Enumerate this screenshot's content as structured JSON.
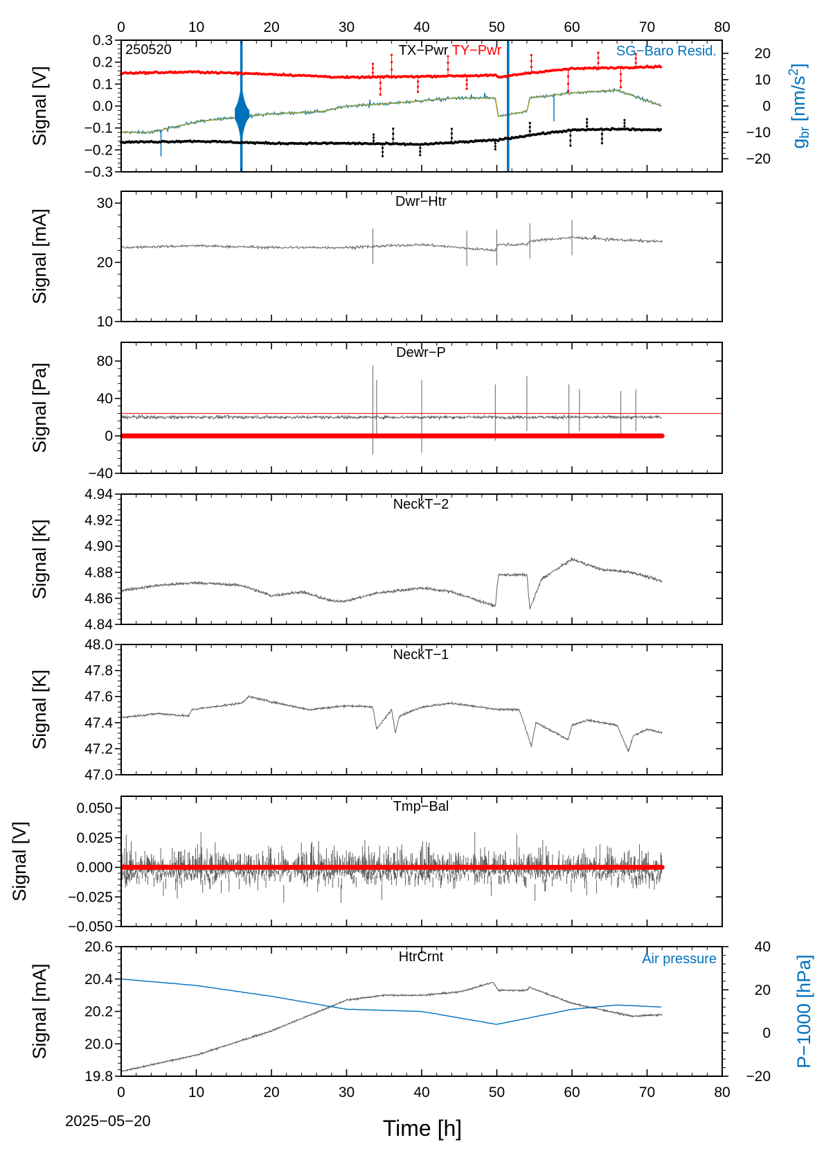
{
  "figure": {
    "date_label": "2025−05−20",
    "xlabel": "Time [h]",
    "xlim": [
      0,
      80
    ],
    "x_ticks": [
      0,
      10,
      20,
      30,
      40,
      50,
      60,
      70,
      80
    ],
    "data_end_h": 72
  },
  "colors": {
    "black": "#000000",
    "red": "#ff0000",
    "blue": "#0072bd",
    "gray": "#606060",
    "olive": "#9aa033"
  },
  "chart_data": [
    {
      "id": "p1",
      "type": "scatter",
      "title": "TX−Pwr",
      "title2": "TY−Pwr",
      "tag": "250520",
      "right_title": "SG−Baro Resid.",
      "ylabel": "Signal [V]",
      "ylim": [
        -0.3,
        0.3
      ],
      "yticks": [
        -0.3,
        -0.2,
        -0.1,
        0.0,
        0.1,
        0.2,
        0.3
      ],
      "ytick_labels": [
        "−0.3",
        "−0.2",
        "−0.1",
        "0.0",
        "0.1",
        "0.2",
        "0.3"
      ],
      "y2label": "g",
      "y2label_sub": "br",
      "y2label_unit": " [nm/s",
      "y2label_sup": "2",
      "y2label_end": "]",
      "y2lim": [
        -25,
        25
      ],
      "y2ticks": [
        -20,
        -10,
        0,
        10,
        20
      ],
      "y2tick_labels": [
        "−20",
        "−10",
        "0",
        "10",
        "20"
      ],
      "series": [
        {
          "name": "TY−Pwr",
          "color": "red",
          "x": [
            0,
            10,
            20,
            30,
            40,
            49.8,
            50.2,
            54,
            60,
            66,
            72
          ],
          "y": [
            0.15,
            0.155,
            0.145,
            0.13,
            0.135,
            0.14,
            0.13,
            0.15,
            0.17,
            0.175,
            0.18
          ]
        },
        {
          "name": "TX−Pwr",
          "color": "black",
          "x": [
            0,
            10,
            20,
            30,
            40,
            50,
            55,
            60,
            66,
            72
          ],
          "y": [
            -0.165,
            -0.16,
            -0.17,
            -0.17,
            -0.175,
            -0.155,
            -0.13,
            -0.11,
            -0.105,
            -0.11
          ]
        },
        {
          "name": "SG−Baro Resid.",
          "color": "blue",
          "axis": "right",
          "x": [
            0,
            4,
            10,
            16,
            20,
            27,
            30,
            36,
            44,
            49.8,
            50.2,
            54,
            54.4,
            60,
            66,
            72
          ],
          "y": [
            -10,
            -10,
            -6,
            -4,
            -3,
            -2,
            0,
            1,
            3,
            3,
            -4,
            -2,
            3,
            5,
            6,
            0
          ]
        }
      ]
    },
    {
      "id": "p2",
      "type": "line",
      "title": "Dwr−Htr",
      "ylabel": "Signal [mA]",
      "ylim": [
        10,
        32
      ],
      "yticks": [
        10,
        20,
        30
      ],
      "ytick_labels": [
        "10",
        "20",
        "30"
      ],
      "series": [
        {
          "color": "gray",
          "x": [
            0,
            10,
            20,
            30,
            40,
            49.8,
            50.2,
            54,
            54.4,
            60,
            66,
            72
          ],
          "y": [
            22.5,
            22.8,
            22.5,
            22.5,
            23,
            22,
            23,
            23,
            23.6,
            24.2,
            23.8,
            23.5
          ]
        }
      ]
    },
    {
      "id": "p3",
      "type": "line",
      "title": "Dewr−P",
      "ylabel": "Signal [Pa]",
      "ylim": [
        -40,
        100
      ],
      "yticks": [
        -40,
        0,
        40,
        80
      ],
      "ytick_labels": [
        "−40",
        "0",
        "40",
        "80"
      ],
      "series": [
        {
          "color": "gray",
          "x": [
            0,
            72
          ],
          "y": [
            20,
            20
          ]
        },
        {
          "color": "red",
          "x": [
            0,
            72
          ],
          "y": [
            0,
            0
          ]
        }
      ],
      "hline": 24
    },
    {
      "id": "p4",
      "type": "line",
      "title": "NeckT−2",
      "ylabel": "Signal [K]",
      "ylim": [
        4.84,
        4.94
      ],
      "yticks": [
        4.84,
        4.86,
        4.88,
        4.9,
        4.92,
        4.94
      ],
      "ytick_labels": [
        "4.84",
        "4.86",
        "4.88",
        "4.90",
        "4.92",
        "4.94"
      ],
      "series": [
        {
          "color": "gray",
          "x": [
            0,
            5,
            10,
            16,
            20,
            24,
            28,
            30,
            34,
            40,
            44,
            49.8,
            50.2,
            54,
            54.4,
            56,
            60,
            64,
            68,
            72
          ],
          "y": [
            4.866,
            4.87,
            4.872,
            4.87,
            4.862,
            4.865,
            4.858,
            4.858,
            4.864,
            4.868,
            4.865,
            4.854,
            4.878,
            4.878,
            4.852,
            4.875,
            4.89,
            4.882,
            4.88,
            4.873
          ]
        }
      ]
    },
    {
      "id": "p5",
      "type": "line",
      "title": "NeckT−1",
      "ylabel": "Signal [K]",
      "ylim": [
        47.0,
        48.0
      ],
      "yticks": [
        47.0,
        47.2,
        47.4,
        47.6,
        47.8,
        48.0
      ],
      "ytick_labels": [
        "47.0",
        "47.2",
        "47.4",
        "47.6",
        "47.8",
        "48.0"
      ],
      "series": [
        {
          "color": "gray",
          "x": [
            0,
            5,
            9,
            9.4,
            16,
            17,
            20,
            25,
            30,
            33.5,
            34,
            36,
            36.5,
            37,
            40,
            44,
            50,
            53,
            54.6,
            55.2,
            59.5,
            60,
            62,
            66,
            67.5,
            68.2,
            70,
            72
          ],
          "y": [
            47.44,
            47.47,
            47.45,
            47.5,
            47.55,
            47.6,
            47.56,
            47.5,
            47.53,
            47.52,
            47.35,
            47.5,
            47.32,
            47.45,
            47.52,
            47.55,
            47.5,
            47.5,
            47.22,
            47.4,
            47.27,
            47.38,
            47.42,
            47.38,
            47.18,
            47.3,
            47.35,
            47.32
          ]
        }
      ]
    },
    {
      "id": "p6",
      "type": "line",
      "title": "Tmp−Bal",
      "ylabel": "Signal [V]",
      "ylim": [
        -0.05,
        0.06
      ],
      "yticks": [
        -0.05,
        -0.025,
        0.0,
        0.025,
        0.05
      ],
      "ytick_labels": [
        "−0.050",
        "−0.025",
        "0.000",
        "0.025",
        "0.050"
      ],
      "series": [
        {
          "color": "gray",
          "x": [
            0,
            72
          ],
          "y": [
            0,
            0
          ]
        },
        {
          "color": "red",
          "x": [
            0,
            72
          ],
          "y": [
            0,
            0
          ]
        }
      ]
    },
    {
      "id": "p7",
      "type": "line",
      "title": "HtrCrnt",
      "right_title": "Air pressure",
      "ylabel": "Signal [mA]",
      "ylim": [
        19.8,
        20.6
      ],
      "yticks": [
        19.8,
        20.0,
        20.2,
        20.4,
        20.6
      ],
      "ytick_labels": [
        "19.8",
        "20.0",
        "20.2",
        "20.4",
        "20.6"
      ],
      "y2label": "P−1000 [hPa]",
      "y2lim": [
        -20,
        40
      ],
      "y2ticks": [
        -20,
        0,
        20,
        40
      ],
      "y2tick_labels": [
        "−20",
        "0",
        "20",
        "40"
      ],
      "series": [
        {
          "color": "gray",
          "x": [
            0,
            10,
            20,
            30,
            35,
            40,
            45,
            49.5,
            50.2,
            54,
            54.3,
            60,
            68,
            72
          ],
          "y": [
            19.83,
            19.93,
            20.08,
            20.27,
            20.3,
            20.3,
            20.32,
            20.38,
            20.33,
            20.33,
            20.35,
            20.25,
            20.17,
            20.18
          ]
        },
        {
          "name": "Air pressure",
          "color": "blue",
          "axis": "right",
          "x": [
            0,
            10,
            20,
            30,
            40,
            50,
            60,
            66,
            72
          ],
          "y": [
            25,
            22,
            17,
            11,
            10,
            4,
            11,
            13,
            12
          ]
        }
      ]
    }
  ]
}
